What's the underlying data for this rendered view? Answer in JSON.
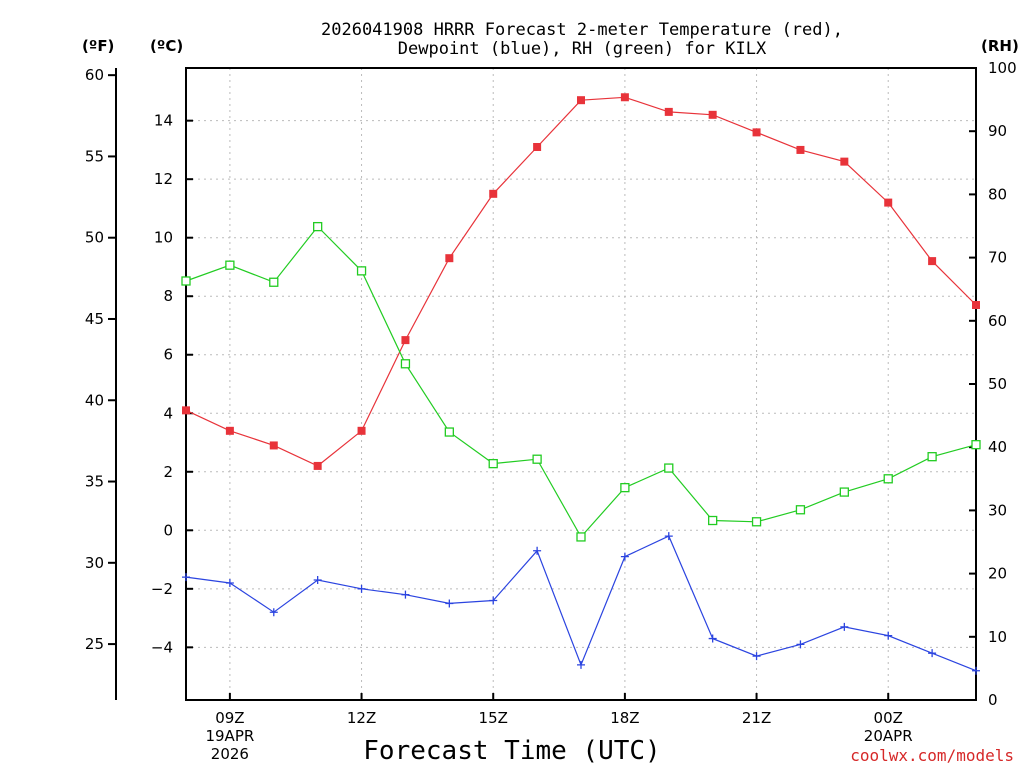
{
  "chart_data": {
    "type": "line",
    "title": [
      "2026041908 HRRR Forecast 2-meter Temperature (red),",
      "Dewpoint (blue), RH (green) for KILX"
    ],
    "xlabel": "Forecast Time (UTC)",
    "units": {
      "fahrenheit": "(ºF)",
      "celsius": "(ºC)",
      "rh": "(RH)"
    },
    "x_hours": [
      8,
      9,
      10,
      11,
      12,
      13,
      14,
      15,
      16,
      17,
      18,
      19,
      20,
      21,
      22,
      23,
      24,
      25,
      26
    ],
    "xlim": [
      8,
      26
    ],
    "x_ticks": [
      {
        "hour": 9,
        "label": "09Z",
        "sub": [
          "19APR",
          "2026"
        ]
      },
      {
        "hour": 12,
        "label": "12Z"
      },
      {
        "hour": 15,
        "label": "15Z"
      },
      {
        "hour": 18,
        "label": "18Z"
      },
      {
        "hour": 21,
        "label": "21Z"
      },
      {
        "hour": 24,
        "label": "00Z",
        "sub": [
          "20APR"
        ]
      }
    ],
    "y_celsius": {
      "lim": [
        -5.8,
        15.8
      ],
      "ticks": [
        "-4",
        "-2",
        "0",
        "2",
        "4",
        "6",
        "8",
        "10",
        "12",
        "14"
      ]
    },
    "y_fahrenheit": {
      "ticks": [
        "25",
        "30",
        "35",
        "40",
        "45",
        "50",
        "55",
        "60"
      ]
    },
    "y_rh": {
      "lim": [
        0,
        100
      ],
      "ticks": [
        "0",
        "10",
        "20",
        "30",
        "40",
        "50",
        "60",
        "70",
        "80",
        "90",
        "100"
      ]
    },
    "series": [
      {
        "name": "Temperature",
        "unit": "C",
        "color": "#e8333a",
        "marker": "filled-square",
        "values": [
          4.1,
          3.4,
          2.9,
          2.2,
          3.4,
          6.5,
          9.3,
          11.5,
          13.1,
          14.7,
          14.8,
          14.3,
          14.2,
          13.6,
          13.0,
          12.6,
          11.2,
          9.2,
          7.7
        ]
      },
      {
        "name": "Dewpoint",
        "unit": "C",
        "color": "#2b44e0",
        "marker": "plus",
        "values": [
          -1.6,
          -1.8,
          -2.8,
          -1.7,
          -2.0,
          -2.2,
          -2.5,
          -2.4,
          -0.7,
          -4.6,
          -0.9,
          -0.2,
          -3.7,
          -4.3,
          -3.9,
          -3.3,
          -3.6,
          -4.2,
          -4.8
        ]
      },
      {
        "name": "RH",
        "unit": "%",
        "color": "#22cc22",
        "marker": "open-square",
        "values": [
          66.3,
          68.8,
          66.1,
          74.9,
          67.9,
          53.2,
          42.4,
          37.4,
          38.1,
          25.8,
          33.6,
          36.7,
          28.4,
          28.2,
          30.1,
          32.9,
          35.0,
          38.5,
          40.4
        ]
      }
    ],
    "grid": true
  },
  "credit": "coolwx.com/models"
}
